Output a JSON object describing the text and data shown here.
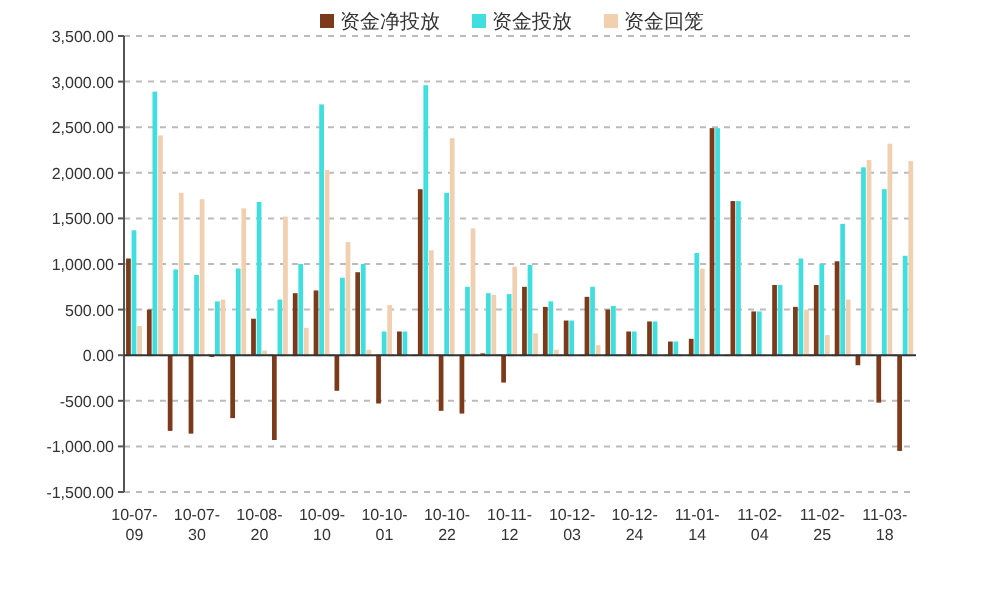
{
  "chart_data": {
    "type": "bar",
    "categories": [
      "10-07-09",
      null,
      null,
      "10-07-30",
      null,
      null,
      "10-08-20",
      null,
      null,
      "10-09-10",
      null,
      null,
      "10-10-01",
      null,
      null,
      "10-10-22",
      null,
      null,
      "10-11-12",
      null,
      null,
      "10-12-03",
      null,
      null,
      "10-12-24",
      null,
      null,
      "11-01-14",
      null,
      null,
      "11-02-04",
      null,
      null,
      "11-02-25",
      null,
      null,
      "11-03-18",
      null
    ],
    "series": [
      {
        "name": "资金净投放",
        "color": "#7b3a1a",
        "values": [
          1060,
          500,
          -830,
          -860,
          -20,
          -690,
          400,
          -930,
          680,
          710,
          -390,
          910,
          -530,
          260,
          1820,
          -610,
          -640,
          20,
          -300,
          750,
          530,
          380,
          640,
          500,
          260,
          370,
          150,
          180,
          2490,
          1690,
          480,
          770,
          530,
          770,
          1030,
          -110,
          -520,
          -1050
        ]
      },
      {
        "name": "资金投放",
        "color": "#40dede",
        "values": [
          1370,
          2890,
          940,
          880,
          590,
          950,
          1680,
          610,
          1000,
          2750,
          850,
          1000,
          260,
          260,
          2960,
          1780,
          750,
          680,
          670,
          990,
          590,
          380,
          750,
          540,
          260,
          370,
          150,
          1120,
          2490,
          1690,
          480,
          770,
          1060,
          1000,
          1440,
          2060,
          1820,
          1090
        ]
      },
      {
        "name": "资金回笼",
        "color": "#f0d0b0",
        "values": [
          320,
          2410,
          1780,
          1710,
          610,
          1610,
          50,
          1520,
          300,
          2030,
          1240,
          60,
          550,
          null,
          1150,
          2380,
          1390,
          660,
          970,
          240,
          60,
          0,
          110,
          null,
          0,
          0,
          0,
          950,
          0,
          0,
          0,
          0,
          500,
          220,
          610,
          2140,
          2320,
          2130
        ]
      }
    ],
    "ylim": [
      -1500,
      3500
    ],
    "yticks": [
      {
        "value": -1500,
        "label": "-1,500.00"
      },
      {
        "value": -1000,
        "label": "-1,000.00"
      },
      {
        "value": -500,
        "label": "-500.00"
      },
      {
        "value": 0,
        "label": "0.00"
      },
      {
        "value": 500,
        "label": "500.00"
      },
      {
        "value": 1000,
        "label": "1,000.00"
      },
      {
        "value": 1500,
        "label": "1,500.00"
      },
      {
        "value": 2000,
        "label": "2,000.00"
      },
      {
        "value": 2500,
        "label": "2,500.00"
      },
      {
        "value": 3000,
        "label": "3,000.00"
      },
      {
        "value": 3500,
        "label": "3,500.00"
      }
    ],
    "grid": "y",
    "legend": "top"
  }
}
